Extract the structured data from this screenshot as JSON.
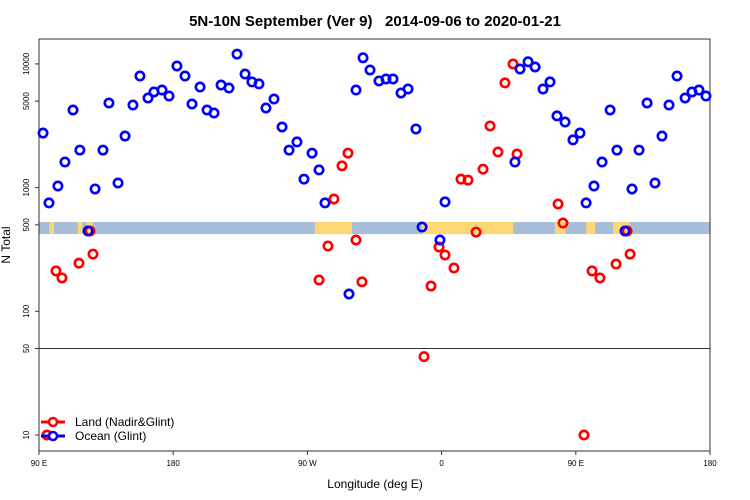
{
  "chart_data": {
    "type": "scatter",
    "title": "5N-10N September (Ver 9)   2014-09-06 to 2020-01-21",
    "xlabel": "Longitude (deg E)",
    "ylabel": "N Total",
    "x_units_note": "unwrapped longitude in deg E (90 to 540 = 90E to 180 to 0 to 90E to 180)",
    "xlim": [
      90,
      540
    ],
    "ylim": [
      8,
      16000
    ],
    "yscale": "log",
    "x_ticks": [
      {
        "value": 90,
        "label": "90 E"
      },
      {
        "value": 180,
        "label": "180"
      },
      {
        "value": 270,
        "label": "90 W"
      },
      {
        "value": 360,
        "label": "0"
      },
      {
        "value": 450,
        "label": "90 E"
      },
      {
        "value": 540,
        "label": "180"
      }
    ],
    "y_ticks": [
      {
        "value": 10,
        "label": "10"
      },
      {
        "value": 50,
        "label": "50"
      },
      {
        "value": 100,
        "label": "100"
      },
      {
        "value": 500,
        "label": "500"
      },
      {
        "value": 1000,
        "label": "1000"
      },
      {
        "value": 5000,
        "label": "5000"
      },
      {
        "value": 10000,
        "label": "10000"
      }
    ],
    "reference_line": 50,
    "land_mask_band": {
      "y_range": [
        421,
        527
      ],
      "ocean_color": "#a7bedb",
      "land_color": "#fdd872",
      "land_segments": [
        [
          97,
          100
        ],
        [
          116,
          119
        ],
        [
          122,
          126
        ],
        [
          275,
          300
        ],
        [
          347,
          408
        ],
        [
          436,
          443
        ],
        [
          457,
          463
        ],
        [
          475,
          486
        ]
      ]
    },
    "legend": {
      "position": "bottom-left",
      "entries": [
        "Land (Nadir&Glint)",
        "Ocean (Glint)"
      ]
    },
    "series": [
      {
        "name": "Land (Nadir&Glint)",
        "color": "#ff0000",
        "x": [
          95.4,
          101.4,
          105.4,
          116.8,
          124.2,
          126.2,
          277.8,
          283.8,
          287.8,
          293.2,
          297.2,
          302.6,
          306.6,
          348.2,
          352.9,
          358.3,
          362.3,
          368.3,
          373.0,
          377.7,
          383.1,
          387.8,
          392.5,
          397.8,
          402.5,
          407.9,
          410.6,
          438.1,
          441.4,
          455.5,
          460.9,
          466.2,
          477.0,
          484.4,
          486.4
        ],
        "y": [
          10,
          212,
          186,
          245,
          446,
          290,
          179,
          337,
          809,
          1500,
          1900,
          377,
          173,
          43,
          160,
          331,
          285,
          224,
          1170,
          1150,
          437,
          1410,
          3150,
          1940,
          7020,
          9980,
          1870,
          737,
          517,
          10,
          212,
          186,
          241,
          446,
          290
        ]
      },
      {
        "name": "Ocean (Glint)",
        "color": "#0000ff",
        "x": [
          92.7,
          96.7,
          102.7,
          107.4,
          112.8,
          117.4,
          122.9,
          127.6,
          132.9,
          136.9,
          143.0,
          147.7,
          153.0,
          157.7,
          163.1,
          167.1,
          172.5,
          177.2,
          182.5,
          187.9,
          192.6,
          198.0,
          202.7,
          207.4,
          212.1,
          217.4,
          222.8,
          228.2,
          232.8,
          237.5,
          242.2,
          247.6,
          253.0,
          257.7,
          263.0,
          267.7,
          273.1,
          277.8,
          281.8,
          297.9,
          302.6,
          307.3,
          312.0,
          318.0,
          322.7,
          327.4,
          332.8,
          337.5,
          342.8,
          346.9,
          358.9,
          362.3,
          409.2,
          412.6,
          418.0,
          422.7,
          428.0,
          432.7,
          437.4,
          442.8,
          448.1,
          452.8,
          456.9,
          462.2,
          467.6,
          473.0,
          477.6,
          483.0,
          487.7,
          492.4,
          497.8,
          503.1,
          507.8,
          512.5,
          517.9,
          523.3,
          527.9,
          532.6,
          537.3
        ],
        "y": [
          2760,
          752,
          1030,
          1610,
          4240,
          2010,
          446,
          975,
          2010,
          4830,
          1090,
          2610,
          4650,
          7980,
          5300,
          5930,
          6150,
          5500,
          9620,
          7980,
          4740,
          6500,
          4240,
          4010,
          6750,
          6380,
          12000,
          8280,
          7150,
          6890,
          4400,
          5200,
          3090,
          2010,
          2340,
          1170,
          1900,
          1390,
          752,
          138,
          6150,
          11200,
          8930,
          7280,
          7550,
          7550,
          5820,
          6270,
          2980,
          480,
          377,
          766,
          1610,
          9100,
          10400,
          9440,
          6270,
          7150,
          3800,
          3390,
          2430,
          2760,
          752,
          1030,
          1610,
          4240,
          2010,
          446,
          975,
          2010,
          4830,
          1090,
          2610,
          4650,
          7980,
          5300,
          5930,
          6150,
          5500
        ]
      }
    ]
  }
}
